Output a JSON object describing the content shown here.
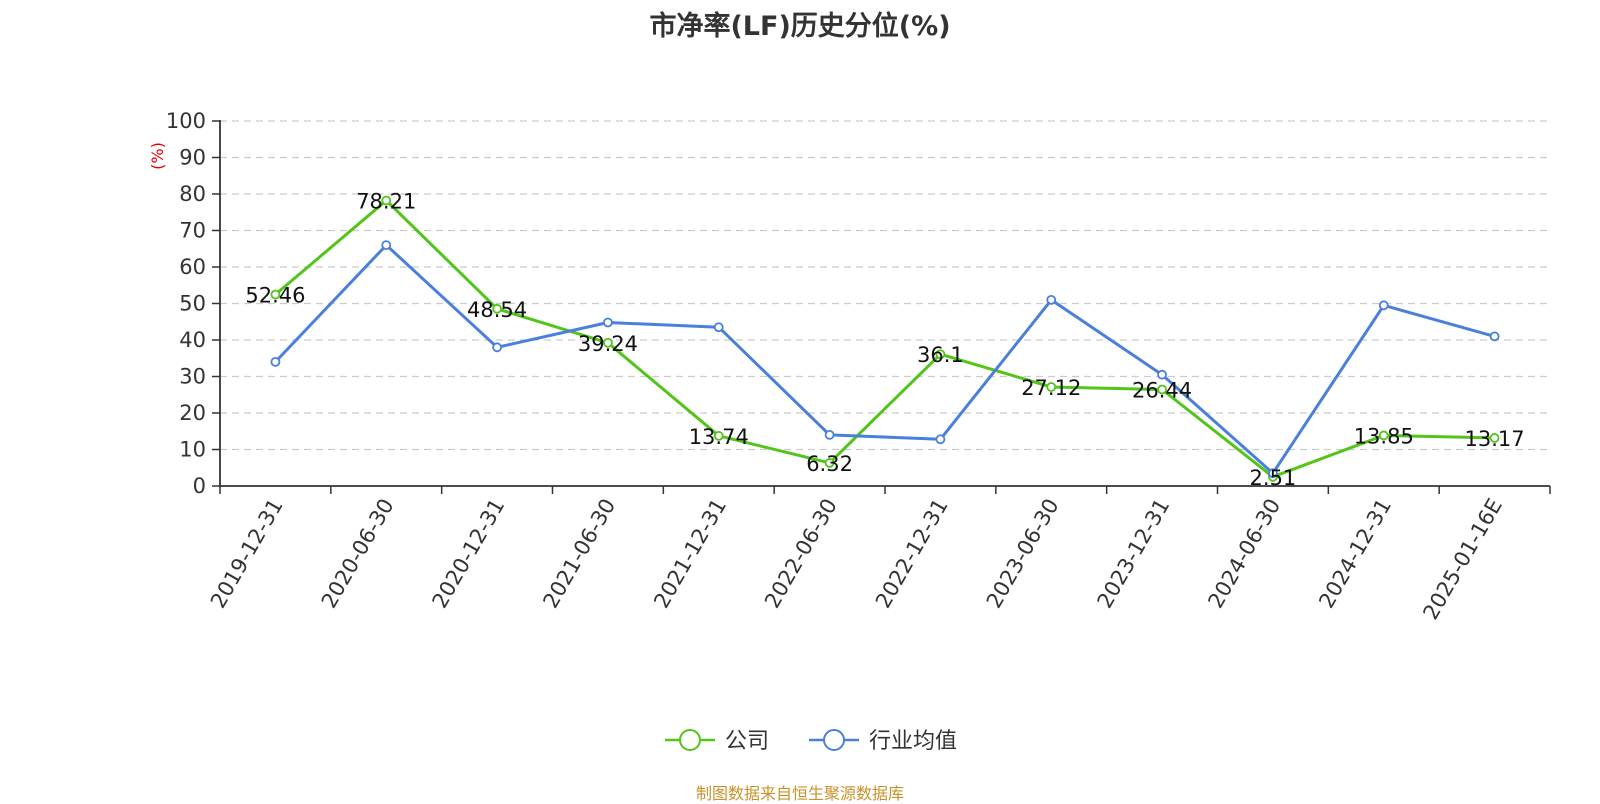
{
  "chart_data": {
    "type": "line",
    "title": "市净率(LF)历史分位(%)",
    "ylabel": "(%)",
    "ylim": [
      0,
      100
    ],
    "yticks": [
      0,
      10,
      20,
      30,
      40,
      50,
      60,
      70,
      80,
      90,
      100
    ],
    "grid": true,
    "legend_position": "bottom",
    "categories": [
      "2019-12-31",
      "2020-06-30",
      "2020-12-31",
      "2021-06-30",
      "2021-12-31",
      "2022-06-30",
      "2022-12-31",
      "2023-06-30",
      "2023-12-31",
      "2024-06-30",
      "2024-12-31",
      "2025-01-16E"
    ],
    "series": [
      {
        "name": "公司",
        "color": "#52c41a",
        "values": [
          52.46,
          78.21,
          48.54,
          39.24,
          13.74,
          6.32,
          36.1,
          27.12,
          26.44,
          2.51,
          13.85,
          13.17
        ],
        "labels": [
          "52.46",
          "78.21",
          "48.54",
          "39.24",
          "13.74",
          "6.32",
          "36.1",
          "27.12",
          "26.44",
          "2.51",
          "13.85",
          "13.17"
        ]
      },
      {
        "name": "行业均值",
        "color": "#4a7fdc",
        "values": [
          34,
          66,
          38,
          44.8,
          43.5,
          14,
          12.8,
          51,
          30.5,
          3.5,
          49.5,
          41
        ]
      }
    ]
  },
  "footer": {
    "source": "制图数据来自恒生聚源数据库"
  }
}
